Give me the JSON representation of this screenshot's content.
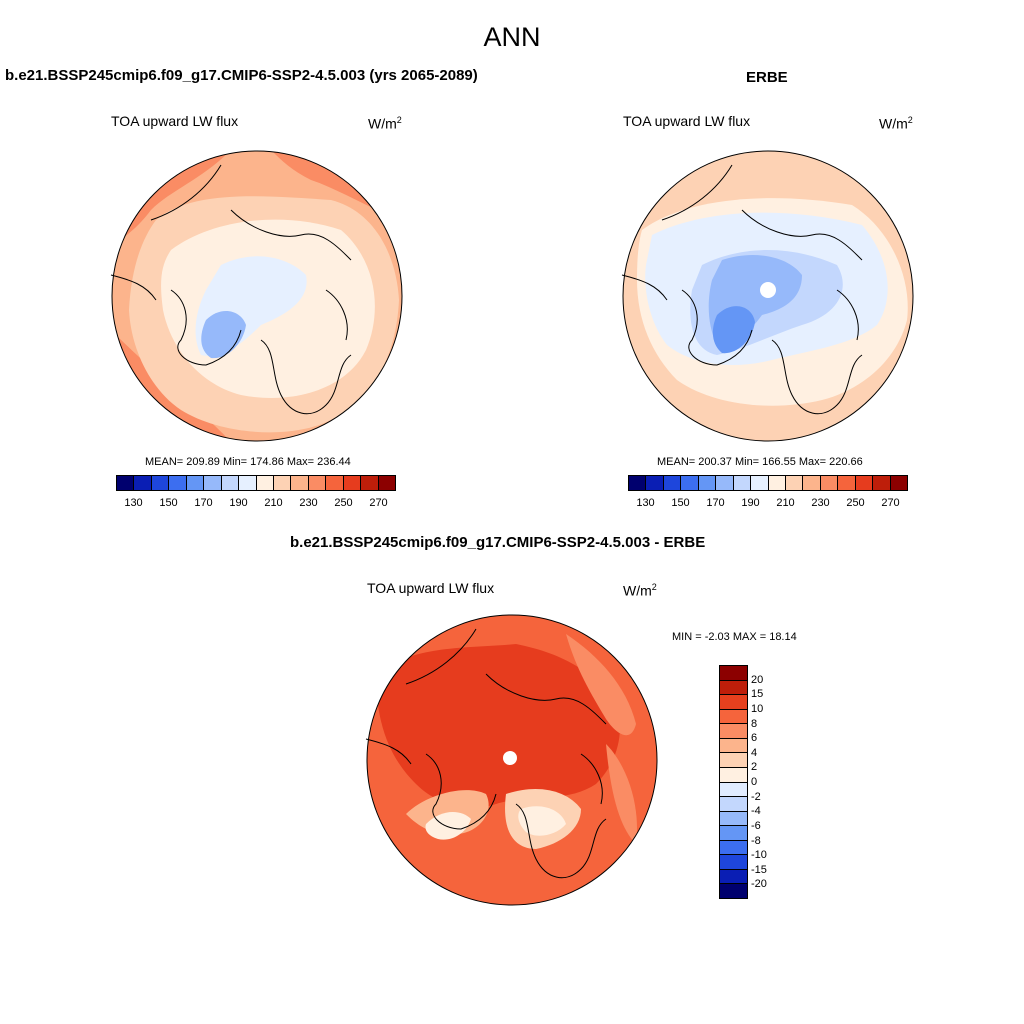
{
  "page_title": "ANN",
  "panels": [
    {
      "title": "b.e21.BSSP245cmip6.f09_g17.CMIP6-SSP2-4.5.003 (yrs 2065-2089)",
      "variable": "TOA upward LW flux",
      "units_base": "W/m",
      "units_exp": "2",
      "stats": "MEAN= 209.89  Min= 174.86  Max= 236.44",
      "mean": 209.89,
      "min": 174.86,
      "max": 236.44
    },
    {
      "title": "ERBE",
      "variable": "TOA upward LW flux",
      "units_base": "W/m",
      "units_exp": "2",
      "stats": "MEAN= 200.37  Min= 166.55  Max= 220.66",
      "mean": 200.37,
      "min": 166.55,
      "max": 220.66
    },
    {
      "title": "b.e21.BSSP245cmip6.f09_g17.CMIP6-SSP2-4.5.003 - ERBE",
      "variable": "TOA upward LW flux",
      "units_base": "W/m",
      "units_exp": "2",
      "stats": "MIN =  -2.03 MAX =  18.14",
      "min": -2.03,
      "max": 18.14
    }
  ],
  "abs_colorbar": {
    "colors": [
      "#00006e",
      "#0a1eb4",
      "#1e46dc",
      "#3c6ef0",
      "#6496f5",
      "#96b9fa",
      "#c3d7fd",
      "#e6f0ff",
      "#fff0e1",
      "#fdd2b4",
      "#fcb48c",
      "#fa8c64",
      "#f5643c",
      "#e63c1e",
      "#be1e0a",
      "#8c0000"
    ],
    "tick_labels": [
      "130",
      "150",
      "170",
      "190",
      "210",
      "230",
      "250",
      "270"
    ],
    "tick_positions": [
      1,
      3,
      5,
      7,
      9,
      11,
      13,
      15
    ]
  },
  "diff_colorbar": {
    "colors": [
      "#8c0000",
      "#be1e0a",
      "#e6401e",
      "#f5643c",
      "#fa8c64",
      "#fcb48c",
      "#fdd2b4",
      "#fff0e1",
      "#e1ecff",
      "#c3d7fd",
      "#96b9fa",
      "#6496f5",
      "#3c6ef0",
      "#1e46dc",
      "#0a1eb4",
      "#00006e"
    ],
    "tick_labels": [
      "20",
      "15",
      "10",
      "8",
      "6",
      "4",
      "2",
      "0",
      "-2",
      "-4",
      "-6",
      "-8",
      "-10",
      "-15",
      "-20"
    ]
  }
}
